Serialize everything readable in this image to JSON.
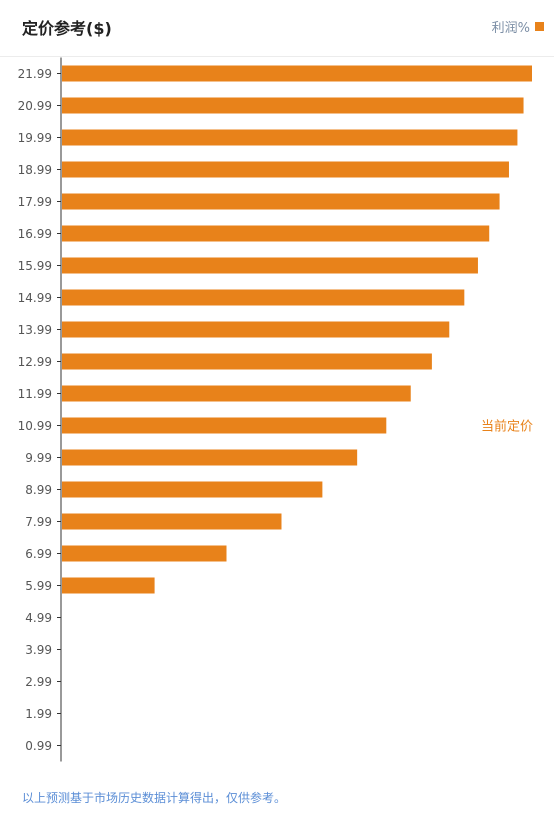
{
  "header": {
    "title": "定价参考($)",
    "legend_label": "利润%"
  },
  "colors": {
    "bar": "#e8821a",
    "axis": "#333333",
    "tick_label": "#555555",
    "annotation": "#e8821a",
    "footnote": "#5b8ed6"
  },
  "chart_data": {
    "type": "bar",
    "orientation": "horizontal",
    "categories": [
      "21.99",
      "20.99",
      "19.99",
      "18.99",
      "17.99",
      "16.99",
      "15.99",
      "14.99",
      "13.99",
      "12.99",
      "11.99",
      "10.99",
      "9.99",
      "8.99",
      "7.99",
      "6.99",
      "5.99",
      "4.99",
      "3.99",
      "2.99",
      "1.99",
      "0.99"
    ],
    "series": [
      {
        "name": "利润%",
        "values": [
          100,
          98.2,
          96.9,
          95.1,
          93.1,
          90.9,
          88.5,
          85.6,
          82.4,
          78.7,
          74.2,
          69.0,
          62.8,
          55.4,
          46.7,
          35.0,
          19.7,
          null,
          null,
          null,
          null,
          null
        ]
      }
    ],
    "annotation": {
      "category": "10.99",
      "text": "当前定价"
    },
    "grid": false,
    "legend": "top-right"
  },
  "footnote": "以上预测基于市场历史数据计算得出，仅供参考。"
}
